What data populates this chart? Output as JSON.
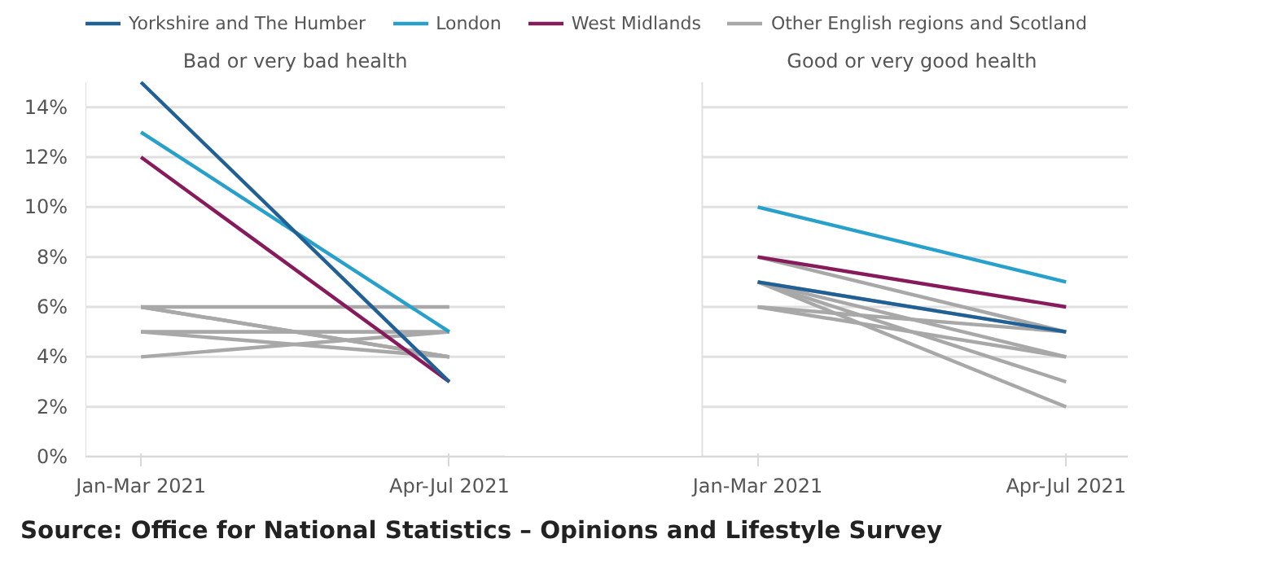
{
  "chart_data": [
    {
      "type": "line",
      "title": "Bad or very bad health",
      "categories": [
        "Jan-Mar 2021",
        "Apr-Jul 2021"
      ],
      "legend": "top",
      "grid": "y",
      "ylim": [
        0,
        15
      ],
      "yticks": [
        {
          "value": 0,
          "label": "0%"
        },
        {
          "value": 2,
          "label": "2%"
        },
        {
          "value": 4,
          "label": "4%"
        },
        {
          "value": 6,
          "label": "6%"
        },
        {
          "value": 8,
          "label": "8%"
        },
        {
          "value": 10,
          "label": "10%"
        },
        {
          "value": 12,
          "label": "12%"
        },
        {
          "value": 14,
          "label": "14%"
        }
      ],
      "annotations": [
        "Source: Office for National Statistics – Opinions and Lifestyle Survey"
      ],
      "series": [
        {
          "name": "Yorkshire and The Humber",
          "color": "#206095",
          "values": [
            15,
            3
          ]
        },
        {
          "name": "London",
          "color": "#27a0cc",
          "values": [
            13,
            5
          ]
        },
        {
          "name": "West Midlands",
          "color": "#871a5b",
          "values": [
            12,
            3
          ]
        },
        {
          "name": "Other English regions and Scotland",
          "color": "#a8a8a8",
          "values": [
            6,
            6
          ]
        },
        {
          "color": "#a8a8a8",
          "values": [
            6,
            4
          ]
        },
        {
          "color": "#a8a8a8",
          "values": [
            6,
            4
          ]
        },
        {
          "color": "#a8a8a8",
          "values": [
            5,
            5
          ]
        },
        {
          "color": "#a8a8a8",
          "values": [
            5,
            4
          ]
        },
        {
          "color": "#a8a8a8",
          "values": [
            4,
            5
          ]
        },
        {
          "color": "#a8a8a8",
          "values": [
            5,
            5
          ]
        }
      ]
    },
    {
      "type": "line",
      "title": "Good or very good health",
      "categories": [
        "Jan-Mar 2021",
        "Apr-Jul 2021"
      ],
      "tick_labels": "x",
      "grid": "y",
      "ylim": [
        0,
        15
      ],
      "yticks": [
        0,
        2,
        4,
        6,
        8,
        10,
        12,
        14
      ],
      "series": [
        {
          "color": "#206095",
          "values": [
            7,
            5
          ]
        },
        {
          "color": "#27a0cc",
          "values": [
            10,
            7
          ]
        },
        {
          "color": "#871a5b",
          "values": [
            8,
            6
          ]
        },
        {
          "color": "#a8a8a8",
          "values": [
            8,
            5
          ]
        },
        {
          "color": "#a8a8a8",
          "values": [
            7,
            4
          ]
        },
        {
          "color": "#a8a8a8",
          "values": [
            7,
            3
          ]
        },
        {
          "color": "#a8a8a8",
          "values": [
            7,
            2
          ]
        },
        {
          "color": "#a8a8a8",
          "values": [
            7,
            5
          ]
        },
        {
          "color": "#a8a8a8",
          "values": [
            6,
            4
          ]
        },
        {
          "color": "#a8a8a8",
          "values": [
            6,
            5
          ]
        }
      ]
    }
  ]
}
